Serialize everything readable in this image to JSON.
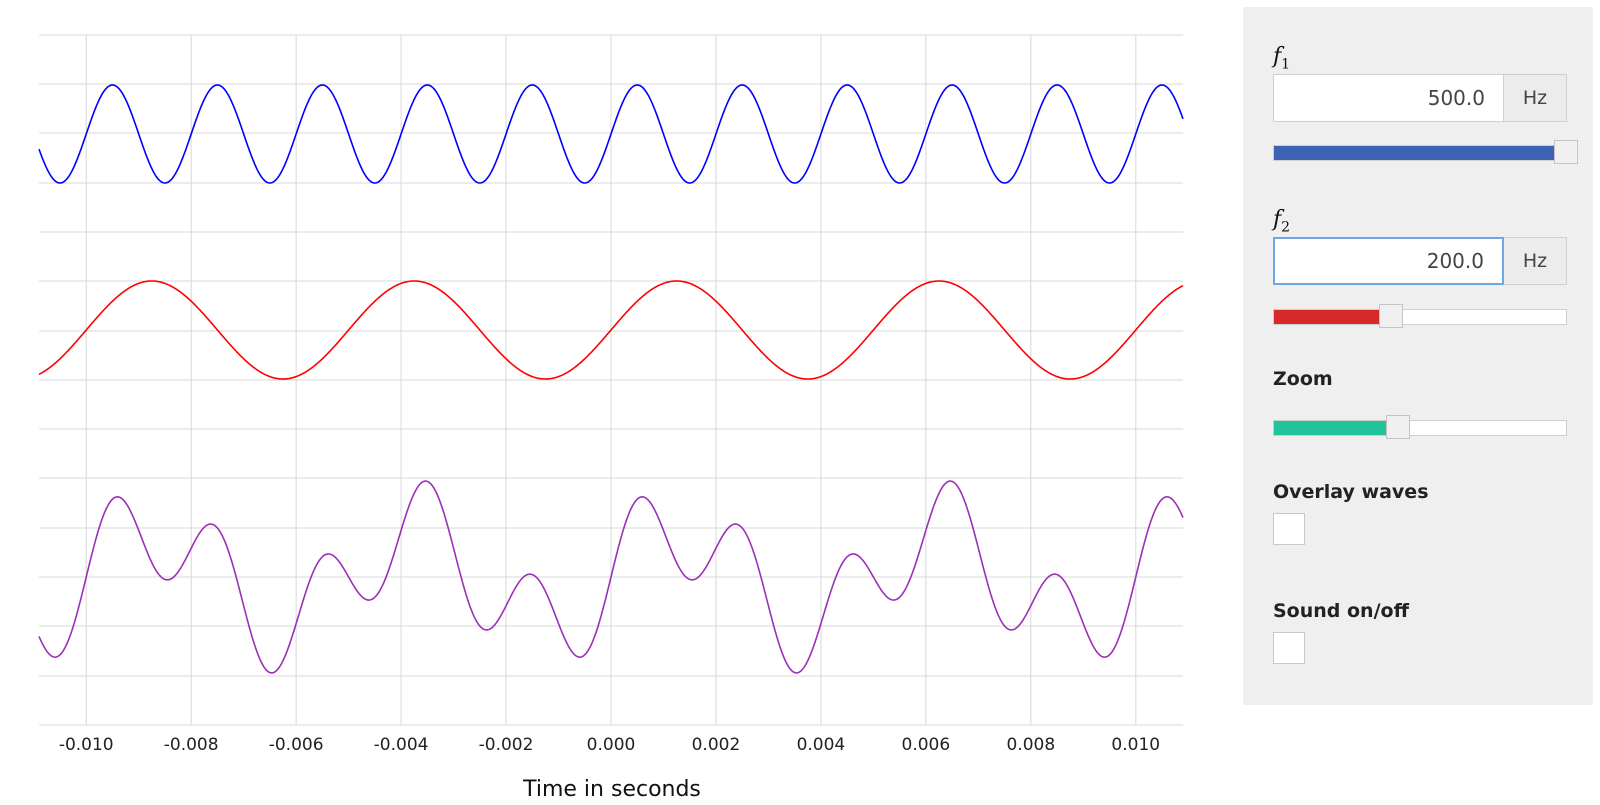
{
  "chart_data": {
    "type": "line",
    "xlabel": "Time in seconds",
    "xlim": [
      -0.0109,
      0.0109
    ],
    "x_ticks": [
      "-0.010",
      "-0.008",
      "-0.006",
      "-0.004",
      "-0.002",
      "0.000",
      "0.002",
      "0.004",
      "0.006",
      "0.008",
      "0.010"
    ],
    "x_tick_values": [
      -0.01,
      -0.008,
      -0.006,
      -0.004,
      -0.002,
      0.0,
      0.002,
      0.004,
      0.006,
      0.008,
      0.01
    ],
    "grid": true,
    "series": [
      {
        "formula": "sin(2*pi*500*t)",
        "frequency_hz": 500,
        "color": "#0000ff"
      },
      {
        "formula": "sin(2*pi*200*t)",
        "frequency_hz": 200,
        "color": "#ff0000"
      },
      {
        "formula": "sin(2*pi*500*t) + sin(2*pi*200*t)",
        "color": "#9b30b8"
      }
    ]
  },
  "controls": {
    "f1": {
      "symbol": "f",
      "sub": "1",
      "value": "500.0",
      "unit": "Hz",
      "slider_fraction": 1.0,
      "color": "#3e62b5"
    },
    "f2": {
      "symbol": "f",
      "sub": "2",
      "value": "200.0",
      "unit": "Hz",
      "slider_fraction": 0.4,
      "color": "#d62a2a"
    },
    "zoom": {
      "label": "Zoom",
      "slider_fraction": 0.425,
      "color": "#22c29a"
    },
    "overlay": {
      "label": "Overlay waves",
      "checked": false
    },
    "sound": {
      "label": "Sound on/off",
      "checked": false
    }
  }
}
